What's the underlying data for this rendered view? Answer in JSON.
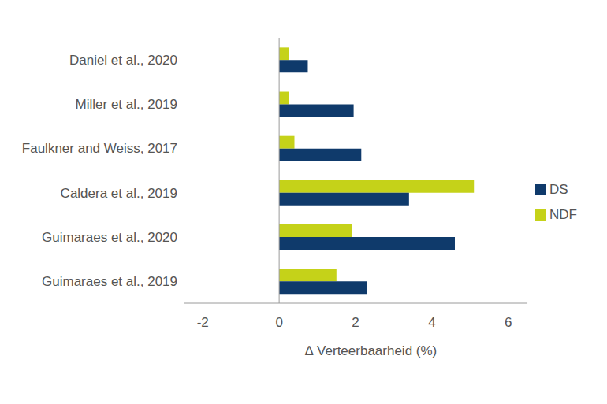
{
  "chart_data": {
    "type": "bar",
    "orientation": "horizontal",
    "x_label": "∆ Verteerbaarheid (%)",
    "categories": [
      "Daniel et al., 2020",
      "Miller et al., 2019",
      "Faulkner and Weiss, 2017",
      "Caldera et al., 2019",
      "Guimaraes et al., 2020",
      "Guimaraes et al., 2019"
    ],
    "series": [
      {
        "name": "NDF",
        "color": "#c5d219",
        "values": [
          0.25,
          0.25,
          0.4,
          5.1,
          1.9,
          1.5
        ]
      },
      {
        "name": "DS",
        "color": "#0f3a6b",
        "values": [
          0.75,
          1.95,
          2.15,
          3.4,
          4.6,
          2.3
        ]
      }
    ],
    "xlim": [
      -2.5,
      6.5
    ],
    "xticks": [
      -2,
      0,
      2,
      4,
      6
    ],
    "grid": false,
    "legend": "right"
  }
}
